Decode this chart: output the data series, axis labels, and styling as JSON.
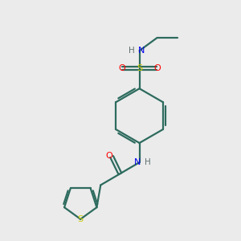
{
  "background_color": "#ebebeb",
  "bond_color": "#2d6b5e",
  "S_color": "#cccc00",
  "O_color": "#ff0000",
  "N_color": "#0000ee",
  "H_color": "#607070",
  "line_width": 1.6,
  "fig_size": [
    3.0,
    3.0
  ],
  "dpi": 100,
  "xlim": [
    0,
    10
  ],
  "ylim": [
    0,
    10
  ],
  "font_size": 7.5
}
